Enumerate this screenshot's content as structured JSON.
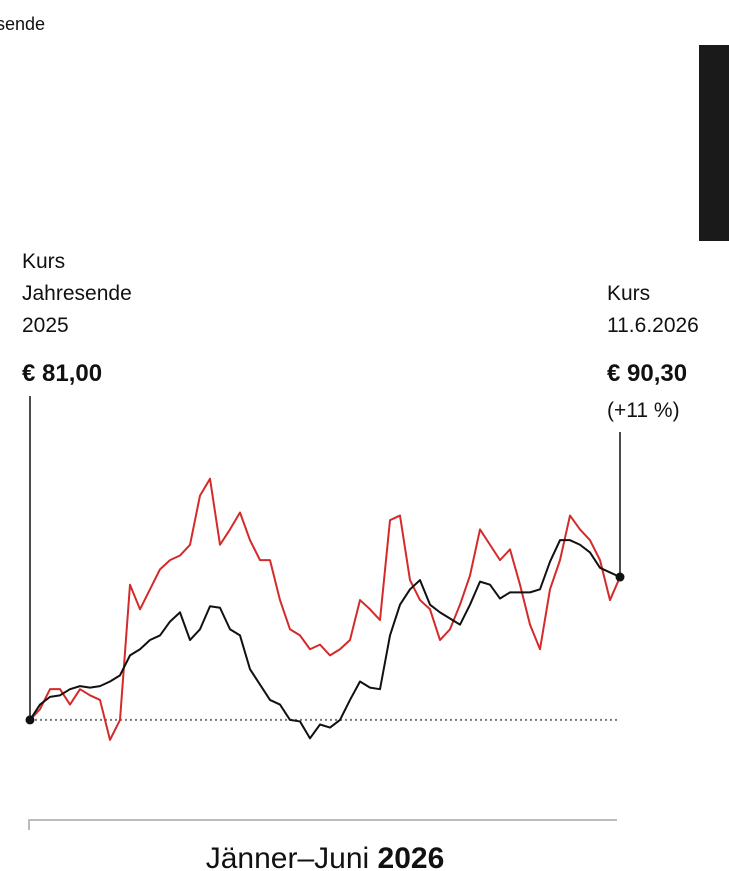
{
  "chart_data": {
    "type": "line",
    "fragment": "sende",
    "x_label": "Jänner–Juni",
    "x_label_bold": "2026",
    "ylim": [
      78,
      100
    ],
    "start": {
      "label": [
        "Kurs",
        "Jahresende",
        "2025"
      ],
      "value": 81,
      "value_label": "€ 81,00"
    },
    "end": {
      "label": [
        "Kurs",
        "11.6.2026"
      ],
      "value": 90.3,
      "value_label": "€ 90,30",
      "change": "(+11 %)"
    },
    "series": [
      {
        "color": "#d42a2a",
        "values": [
          81.0,
          81.7,
          83.0,
          83.0,
          82.0,
          83.0,
          82.6,
          82.3,
          79.7,
          81.0,
          89.8,
          88.2,
          89.5,
          90.8,
          91.4,
          91.7,
          92.4,
          95.6,
          96.7,
          92.4,
          93.4,
          94.5,
          92.7,
          91.4,
          91.4,
          88.8,
          86.9,
          86.5,
          85.6,
          85.9,
          85.2,
          85.6,
          86.2,
          88.8,
          88.2,
          87.5,
          94.0,
          94.3,
          90.1,
          88.8,
          88.2,
          86.2,
          86.9,
          88.5,
          90.4,
          93.4,
          92.4,
          91.4,
          92.1,
          89.8,
          87.2,
          85.6,
          89.5,
          91.4,
          94.3,
          93.4,
          92.7,
          91.4,
          88.8,
          90.3
        ]
      },
      {
        "color": "#111111",
        "values": [
          81.0,
          82.0,
          82.5,
          82.6,
          83.0,
          83.2,
          83.1,
          83.2,
          83.5,
          83.9,
          85.2,
          85.6,
          86.2,
          86.5,
          87.4,
          88.0,
          86.2,
          86.9,
          88.4,
          88.3,
          86.9,
          86.5,
          84.3,
          83.3,
          82.3,
          82.0,
          81.0,
          80.9,
          79.8,
          80.7,
          80.5,
          81.0,
          82.3,
          83.5,
          83.1,
          83.0,
          86.5,
          88.5,
          89.5,
          90.1,
          88.5,
          88.0,
          87.6,
          87.2,
          88.5,
          90.0,
          89.8,
          88.9,
          89.3,
          89.3,
          89.3,
          89.5,
          91.3,
          92.7,
          92.7,
          92.4,
          91.9,
          90.9,
          90.6,
          90.3
        ]
      }
    ]
  }
}
